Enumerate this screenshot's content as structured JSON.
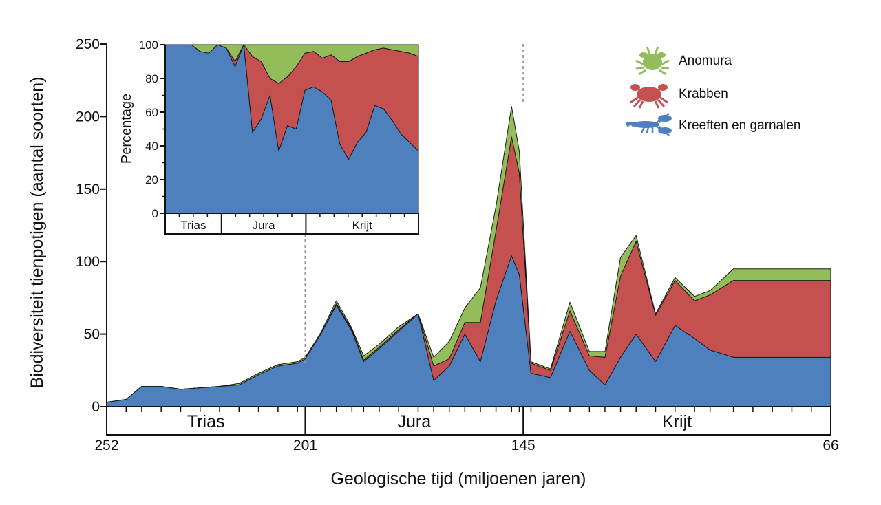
{
  "colors": {
    "kreeften": "#4e80be",
    "krabben": "#c45150",
    "anomura": "#92bd5a",
    "grid_marker": "#9a9a9a"
  },
  "chart_data": [
    {
      "type": "area",
      "stacked": true,
      "xlabel": "Geologische tijd (miljoenen jaren)",
      "ylabel": "Biodiversiteit tienpotigen (aantal soorten)",
      "xlim": [
        252,
        66
      ],
      "x_ticks": [
        252,
        201,
        145,
        66
      ],
      "ylim": [
        0,
        250
      ],
      "y_ticks": [
        0,
        50,
        100,
        150,
        200,
        250
      ],
      "periods": [
        {
          "name": "Trias",
          "start": 252,
          "end": 201
        },
        {
          "name": "Jura",
          "start": 201,
          "end": 145
        },
        {
          "name": "Krijt",
          "start": 145,
          "end": 66
        }
      ],
      "boundaries": [
        201,
        145
      ],
      "x": [
        252,
        247,
        243,
        238,
        233,
        228,
        223,
        218,
        213,
        208,
        203,
        201,
        197,
        193,
        189,
        186,
        182,
        177,
        172,
        168,
        164,
        160,
        156,
        152,
        148,
        146,
        143,
        138,
        133,
        128,
        124,
        120,
        116,
        111,
        106,
        101,
        97,
        91,
        86,
        81,
        76,
        71,
        66
      ],
      "series": [
        {
          "name": "Kreeften en garnalen",
          "color_key": "kreeften",
          "values": [
            3,
            5,
            14,
            14,
            12,
            13,
            14,
            15,
            22,
            28,
            30,
            33,
            50,
            70,
            52,
            31,
            40,
            52,
            64,
            18,
            28,
            50,
            31,
            73,
            104,
            91,
            23,
            20,
            52,
            25,
            15,
            34,
            50,
            31,
            56,
            47,
            39,
            34,
            34,
            34,
            34,
            34,
            34
          ]
        },
        {
          "name": "Krabben",
          "color_key": "krabben",
          "values": [
            0,
            0,
            0,
            0,
            0,
            0,
            0,
            0,
            0,
            0,
            0,
            0,
            0,
            1,
            1,
            1,
            1,
            1,
            0,
            10,
            5,
            8,
            27,
            48,
            82,
            70,
            7,
            5,
            14,
            10,
            19,
            56,
            64,
            32,
            31,
            26,
            38,
            53,
            53,
            53,
            53,
            53,
            53
          ]
        },
        {
          "name": "Anomura",
          "color_key": "anomura",
          "values": [
            0,
            0,
            0,
            0,
            0,
            0,
            0,
            1,
            1,
            1,
            1,
            1,
            1,
            2,
            1,
            3,
            2,
            2,
            0,
            6,
            12,
            10,
            24,
            17,
            21,
            15,
            1,
            1,
            6,
            3,
            4,
            13,
            4,
            1,
            2,
            3,
            3,
            8,
            8,
            8,
            8,
            8,
            8
          ]
        }
      ],
      "legend": {
        "position": "top-right",
        "entries": [
          "Anomura",
          "Krabben",
          "Kreeften en garnalen"
        ]
      }
    },
    {
      "type": "area",
      "stacked": true,
      "inset": true,
      "ylabel": "Percentage",
      "ylim": [
        0,
        100
      ],
      "y_ticks": [
        0,
        20,
        40,
        60,
        80,
        100
      ],
      "periods": [
        {
          "name": "Trias",
          "ticks": 4
        },
        {
          "name": "Jura",
          "ticks": 6
        },
        {
          "name": "Krijt",
          "ticks": 8
        }
      ],
      "x_index": [
        0,
        1,
        2,
        3,
        4,
        5,
        6,
        7,
        8,
        9,
        10,
        11,
        12,
        13,
        14,
        15,
        16,
        17,
        18,
        19,
        20,
        21,
        22,
        23,
        24,
        25,
        26,
        27,
        28,
        29
      ],
      "series": [
        {
          "name": "Kreeften en garnalen",
          "color_key": "kreeften",
          "values": [
            100,
            100,
            100,
            100,
            96,
            95,
            100,
            98,
            87,
            100,
            48,
            56,
            70,
            37,
            52,
            50,
            73,
            75,
            72,
            67,
            41,
            32,
            42,
            48,
            64,
            62,
            55,
            47,
            42,
            37
          ]
        },
        {
          "name": "Krabben",
          "color_key": "krabben",
          "values": [
            0,
            0,
            0,
            0,
            0,
            0,
            0,
            0,
            3,
            0,
            45,
            34,
            10,
            40,
            29,
            37,
            22,
            21,
            20,
            27,
            49,
            58,
            51,
            47,
            33,
            36,
            42,
            49,
            53,
            56
          ]
        },
        {
          "name": "Anomura",
          "color_key": "anomura",
          "values": [
            0,
            0,
            0,
            0,
            4,
            5,
            0,
            2,
            10,
            0,
            7,
            10,
            20,
            23,
            19,
            13,
            5,
            4,
            8,
            6,
            10,
            10,
            7,
            5,
            3,
            2,
            3,
            4,
            5,
            7
          ]
        }
      ]
    }
  ]
}
